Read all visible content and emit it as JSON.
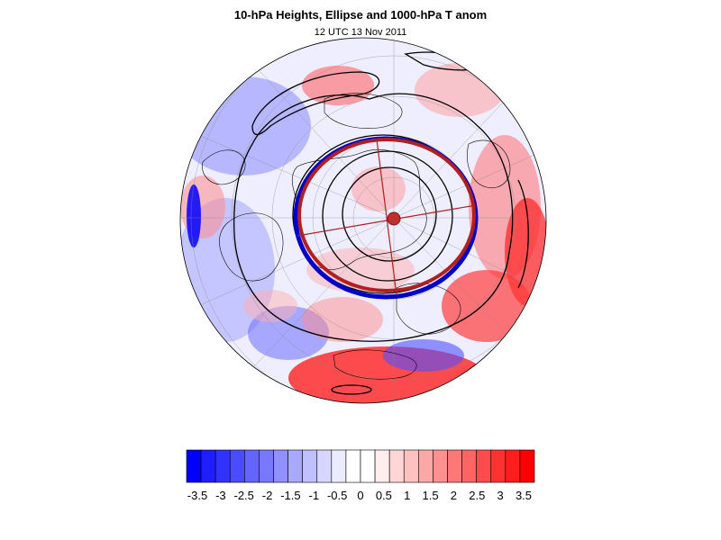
{
  "header": {
    "title": "10-hPa Heights, Ellipse and 1000-hPa T anom",
    "subtitle": "12 UTC 13 Nov 2011"
  },
  "map": {
    "projection": "polar stereographic (northern hemisphere)",
    "fill_field": "1000-hPa temperature anomaly",
    "contour_field": "10-hPa geopotential height",
    "overlay": "vortex ellipse"
  },
  "colorbar": {
    "colors": [
      "#0000ff",
      "#1e1eff",
      "#3232ff",
      "#4b4bff",
      "#6464ff",
      "#7878ff",
      "#9090ff",
      "#a8a8ff",
      "#c0c0ff",
      "#d6d6ff",
      "#ececff",
      "#ffffff",
      "#ffffff",
      "#ffecec",
      "#ffd6d6",
      "#ffc0c0",
      "#ffa8a8",
      "#ff9090",
      "#ff7878",
      "#ff6464",
      "#ff4b4b",
      "#ff3232",
      "#ff1e1e",
      "#ff0000"
    ],
    "tick_labels": [
      "-3.5",
      "-3",
      "-2.5",
      "-2",
      "-1.5",
      "-1",
      "-0.5",
      "0",
      "0.5",
      "1",
      "1.5",
      "2",
      "2.5",
      "3",
      "3.5"
    ]
  },
  "colors": {
    "cold": "#3232ff",
    "warm": "#ff3232",
    "ellipse": "#c02020",
    "ellipse_outer": "#0000c8",
    "contour": "#000000"
  }
}
